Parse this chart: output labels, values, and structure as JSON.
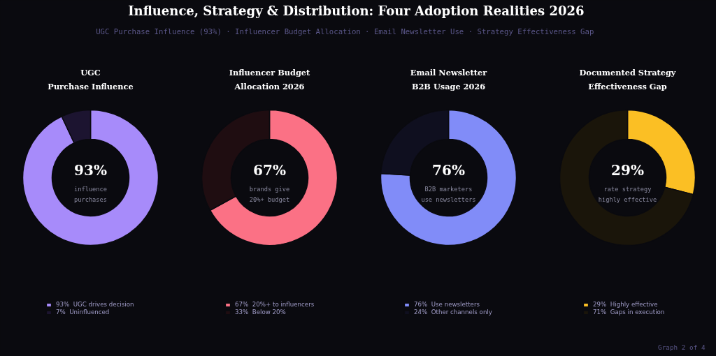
{
  "chart_data": [
    {
      "type": "other",
      "title": "Influence, Strategy & Distribution: Four Adoption Realities  2026",
      "subtitle": "UGC Purchase Influence (93%)  ·  Influencer Budget Allocation  ·  Email Newsletter Use  ·  Strategy Effectiveness Gap",
      "annotations": [
        "Graph 2 of 4"
      ]
    },
    {
      "type": "donut",
      "title": "UGC\nPurchase Influence",
      "categories": [
        "UGC drives decision",
        "Uninfluenced"
      ],
      "values": [
        93,
        7
      ],
      "colors": [
        "#a78bfa",
        "#1c1430"
      ],
      "value_labels": [
        "93%",
        "7%"
      ],
      "annotations": [
        "93%",
        "influence\npurchases"
      ],
      "legend": "bottom"
    },
    {
      "type": "donut",
      "title": "Influencer Budget\nAllocation 2026",
      "categories": [
        "20%+ to influencers",
        "Below 20%"
      ],
      "values": [
        67,
        33
      ],
      "colors": [
        "#fb7185",
        "#1f0d11"
      ],
      "value_labels": [
        "67%",
        "33%"
      ],
      "annotations": [
        "67%",
        "brands give\n20%+ budget"
      ],
      "legend": "bottom"
    },
    {
      "type": "donut",
      "title": "Email Newsletter\nB2B Usage 2026",
      "categories": [
        "Use newsletters",
        "Other channels only"
      ],
      "values": [
        76,
        24
      ],
      "colors": [
        "#818cf8",
        "#0f0f1f"
      ],
      "value_labels": [
        "76%",
        "24%"
      ],
      "annotations": [
        "76%",
        "B2B marketers\nuse newsletters"
      ],
      "legend": "bottom"
    },
    {
      "type": "donut",
      "title": "Documented Strategy\nEffectiveness Gap",
      "categories": [
        "Highly effective",
        "Gaps in execution"
      ],
      "values": [
        29,
        71
      ],
      "colors": [
        "#fbbf24",
        "#1a150a"
      ],
      "value_labels": [
        "29%",
        "71%"
      ],
      "annotations": [
        "29%",
        "rate strategy\nhighly effective"
      ],
      "legend": "bottom"
    }
  ]
}
